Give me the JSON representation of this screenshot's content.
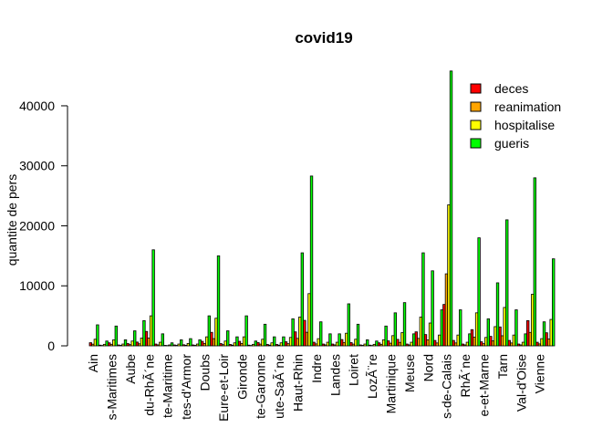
{
  "chart_data": {
    "type": "bar",
    "title": "covid19",
    "y_label": "quantite de pers",
    "categories": [
      "Ain",
      null,
      "s-Maritimes",
      null,
      "Aube",
      null,
      "du-RhÃ´ne",
      null,
      "te-Maritime",
      null,
      "tes-d'Armor",
      null,
      "Doubs",
      null,
      "Eure-et-Loir",
      null,
      "Gironde",
      null,
      "te-Garonne",
      null,
      "ute-SaÃ´ne",
      null,
      "Haut-Rhin",
      null,
      "Indre",
      null,
      "Landes",
      null,
      "Loiret",
      null,
      "LozÃ¨re",
      null,
      "Martinique",
      null,
      "Meuse",
      null,
      "Nord",
      null,
      "s-de-Calais",
      null,
      "RhÃ´ne",
      null,
      "e-et-Marne",
      null,
      "Tarn",
      null,
      "Val-d'Oise",
      null,
      "Vienne",
      null
    ],
    "series": [
      {
        "name": "deces",
        "color": "#ff0000",
        "values": [
          520,
          120,
          500,
          150,
          380,
          630,
          2400,
          300,
          80,
          150,
          180,
          150,
          750,
          2250,
          380,
          230,
          750,
          120,
          540,
          230,
          230,
          680,
          2330,
          4250,
          600,
          300,
          300,
          1050,
          540,
          150,
          120,
          500,
          830,
          1080,
          300,
          2330,
          1880,
          900,
          6900,
          900,
          300,
          2700,
          680,
          1580,
          3150,
          900,
          300,
          4200,
          600,
          2180
        ]
      },
      {
        "name": "reanimation",
        "color": "#ffa500",
        "values": [
          280,
          60,
          260,
          80,
          200,
          340,
          1300,
          160,
          40,
          80,
          100,
          80,
          400,
          1200,
          200,
          120,
          400,
          60,
          290,
          120,
          120,
          360,
          1240,
          2260,
          320,
          160,
          160,
          560,
          290,
          80,
          60,
          260,
          440,
          580,
          160,
          1240,
          1000,
          480,
          12000,
          480,
          160,
          1440,
          360,
          840,
          1680,
          480,
          160,
          2240,
          320,
          1160
        ]
      },
      {
        "name": "hospitalise",
        "color": "#ffff00",
        "values": [
          1100,
          250,
          1000,
          300,
          800,
          1300,
          5000,
          600,
          150,
          300,
          400,
          300,
          1500,
          4600,
          800,
          500,
          1500,
          250,
          1100,
          500,
          500,
          1400,
          4800,
          8700,
          1200,
          600,
          600,
          2100,
          1100,
          300,
          250,
          1000,
          1700,
          2200,
          600,
          4800,
          3800,
          1800,
          23500,
          1800,
          600,
          5500,
          1400,
          3200,
          6400,
          1800,
          600,
          8600,
          1200,
          4400
        ]
      },
      {
        "name": "gueris",
        "color": "#00ff00",
        "values": [
          3500,
          800,
          3300,
          1000,
          2500,
          4200,
          16000,
          2000,
          500,
          1000,
          1200,
          1000,
          5000,
          15000,
          2500,
          1500,
          5000,
          800,
          3600,
          1500,
          1500,
          4500,
          15500,
          28300,
          4000,
          2000,
          2000,
          7000,
          3600,
          1000,
          800,
          3300,
          5500,
          7200,
          2000,
          15500,
          12500,
          6000,
          45800,
          6000,
          2000,
          18000,
          4500,
          10500,
          21000,
          6000,
          2000,
          28000,
          4000,
          14500
        ]
      }
    ],
    "ylim": [
      0,
      46000
    ],
    "yticks": [
      0,
      10000,
      20000,
      30000,
      40000
    ],
    "grid": false,
    "legend": "top-right"
  }
}
